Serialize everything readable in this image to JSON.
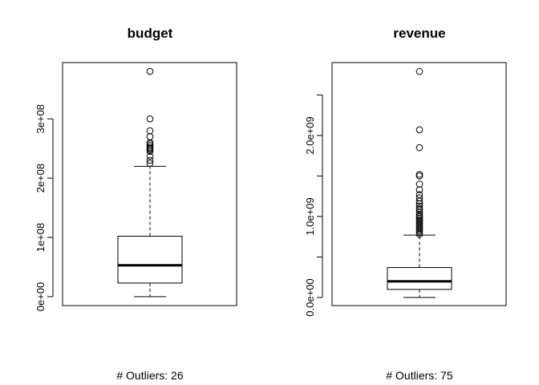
{
  "chart_data": [
    {
      "type": "box",
      "title": "budget",
      "ylim": [
        -15000000,
        395000000
      ],
      "y_ticks": [
        0,
        100000000,
        200000000,
        300000000
      ],
      "y_tick_labels": [
        "0e+00",
        "1e+08",
        "2e+08",
        "3e+08"
      ],
      "box": {
        "min": 0,
        "q1": 23000000,
        "median": 53000000,
        "q3": 102000000,
        "whisker_high": 220000000
      },
      "outliers": [
        225000000,
        230000000,
        237000000,
        245000000,
        248000000,
        250000000,
        252000000,
        255000000,
        258000000,
        260000000,
        270000000,
        280000000,
        300000000,
        380000000
      ],
      "footer": "# Outliers:  26"
    },
    {
      "type": "box",
      "title": "revenue",
      "ylim": [
        -100000000,
        2900000000
      ],
      "y_ticks": [
        0,
        500000000,
        1000000000,
        1500000000,
        2000000000,
        2500000000
      ],
      "y_tick_labels": [
        "0.0e+00",
        "",
        "1.0e+09",
        "",
        "2.0e+09",
        ""
      ],
      "box": {
        "min": 0,
        "q1": 100000000,
        "median": 200000000,
        "q3": 370000000,
        "whisker_high": 770000000
      },
      "outliers": [
        780000000,
        800000000,
        820000000,
        840000000,
        860000000,
        880000000,
        900000000,
        920000000,
        940000000,
        960000000,
        980000000,
        1000000000,
        1020000000,
        1050000000,
        1080000000,
        1100000000,
        1130000000,
        1160000000,
        1190000000,
        1230000000,
        1270000000,
        1330000000,
        1400000000,
        1500000000,
        1520000000,
        1850000000,
        2070000000,
        2790000000
      ],
      "footer": "# Outliers:  75"
    }
  ]
}
